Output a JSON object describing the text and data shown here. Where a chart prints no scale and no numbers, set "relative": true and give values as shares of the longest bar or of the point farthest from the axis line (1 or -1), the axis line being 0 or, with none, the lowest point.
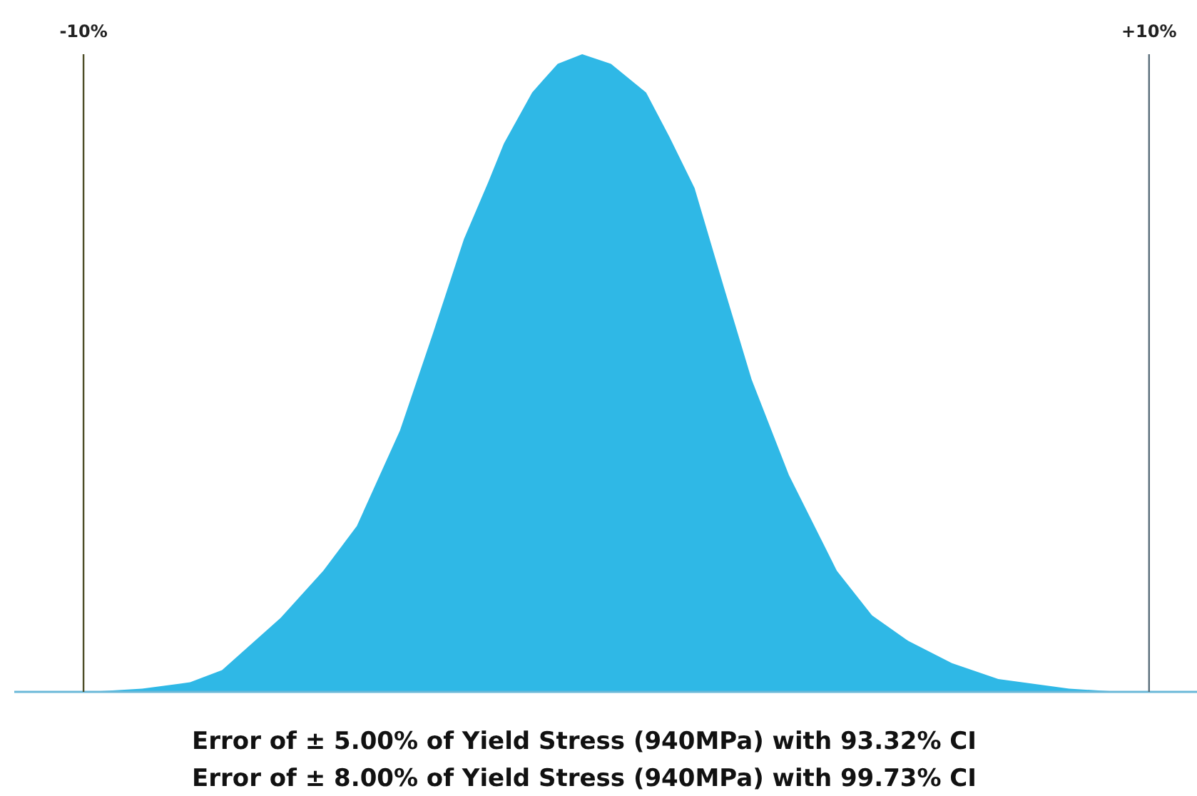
{
  "chart_data": {
    "type": "area",
    "relative": true,
    "xlim": [
      -11.3,
      10.9
    ],
    "xticks": [
      {
        "value": -10,
        "label": "-10%"
      },
      {
        "value": 10,
        "label": "+10%"
      }
    ],
    "series": [
      {
        "color": "#2fb8e6",
        "x": [
          -9.9,
          -8.9,
          -8.0,
          -7.4,
          -6.3,
          -5.5,
          -4.87,
          -4.06,
          -3.45,
          -2.86,
          -2.4,
          -2.11,
          -1.58,
          -1.1,
          -0.64,
          -0.1,
          0.56,
          1.0,
          1.47,
          2.0,
          2.54,
          3.24,
          4.14,
          4.8,
          5.48,
          6.3,
          7.17,
          8.5,
          9.47
        ],
        "values": [
          0,
          0.005,
          0.015,
          0.034,
          0.116,
          0.19,
          0.26,
          0.41,
          0.56,
          0.71,
          0.8,
          0.86,
          0.94,
          0.985,
          1,
          0.985,
          0.94,
          0.87,
          0.79,
          0.64,
          0.49,
          0.34,
          0.19,
          0.12,
          0.08,
          0.045,
          0.02,
          0.005,
          0
        ]
      }
    ],
    "ref_lines": [
      {
        "axis": "x",
        "value": -10,
        "color": "#4d4d26"
      },
      {
        "axis": "x",
        "value": 10,
        "color": "#5a6e7a"
      }
    ],
    "annotations": [
      "Error of ± 5.00% of Yield Stress (940MPa) with 93.32% CI",
      "Error of ± 8.00% of Yield Stress (940MPa) with 99.73% CI"
    ]
  }
}
